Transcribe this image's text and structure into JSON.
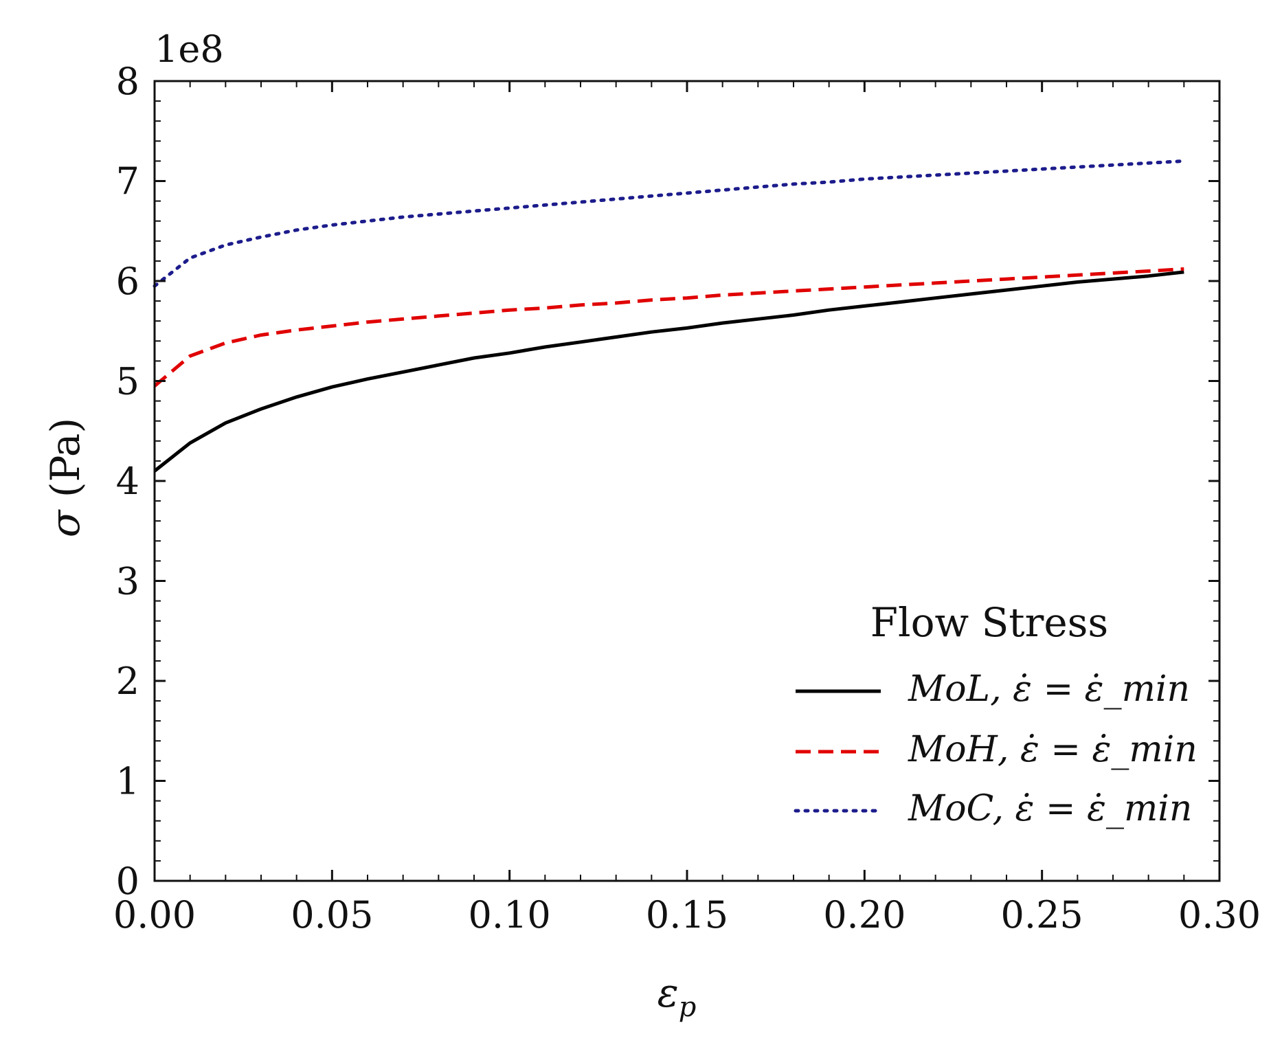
{
  "chart_data": {
    "type": "line",
    "title": "",
    "xlabel": "ε_p",
    "ylabel": "σ (Pa)",
    "y_offset_text": "1e8",
    "xlim": [
      0.0,
      0.3
    ],
    "ylim": [
      0,
      800000000.0
    ],
    "x_ticks": [
      0.0,
      0.05,
      0.1,
      0.15,
      0.2,
      0.25,
      0.3
    ],
    "x_tick_labels": [
      "0.00",
      "0.05",
      "0.10",
      "0.15",
      "0.20",
      "0.25",
      "0.30"
    ],
    "y_ticks": [
      0,
      100000000.0,
      200000000.0,
      300000000.0,
      400000000.0,
      500000000.0,
      600000000.0,
      700000000.0,
      800000000.0
    ],
    "y_tick_labels": [
      "0",
      "1",
      "2",
      "3",
      "4",
      "5",
      "6",
      "7",
      "8"
    ],
    "grid": false,
    "legend": {
      "title": "Flow Stress",
      "placement": "lower-right"
    },
    "x": [
      0.0,
      0.01,
      0.02,
      0.03,
      0.04,
      0.05,
      0.06,
      0.07,
      0.08,
      0.09,
      0.1,
      0.11,
      0.12,
      0.13,
      0.14,
      0.15,
      0.16,
      0.17,
      0.18,
      0.19,
      0.2,
      0.21,
      0.22,
      0.23,
      0.24,
      0.25,
      0.26,
      0.27,
      0.28,
      0.29
    ],
    "series": [
      {
        "name": "MoL, ε̇ = ε̇_min",
        "color": "#000000",
        "style": "solid",
        "values": [
          410000000.0,
          438000000.0,
          458000000.0,
          472000000.0,
          484000000.0,
          494000000.0,
          502000000.0,
          509000000.0,
          516000000.0,
          523000000.0,
          528000000.0,
          534000000.0,
          539000000.0,
          544000000.0,
          549000000.0,
          553000000.0,
          558000000.0,
          562000000.0,
          566000000.0,
          571000000.0,
          575000000.0,
          579000000.0,
          583000000.0,
          587000000.0,
          591000000.0,
          595000000.0,
          599000000.0,
          602000000.0,
          605000000.0,
          609000000.0
        ]
      },
      {
        "name": "MoH, ε̇ = ε̇_min",
        "color": "#e00000",
        "style": "dashed",
        "values": [
          495000000.0,
          525000000.0,
          538000000.0,
          546000000.0,
          551000000.0,
          555000000.0,
          559000000.0,
          562000000.0,
          565000000.0,
          568000000.0,
          571000000.0,
          573000000.0,
          576000000.0,
          578000000.0,
          581000000.0,
          583000000.0,
          586000000.0,
          588000000.0,
          590000000.0,
          592000000.0,
          594000000.0,
          596000000.0,
          598000000.0,
          600000000.0,
          602000000.0,
          604000000.0,
          606000000.0,
          608000000.0,
          610000000.0,
          612000000.0
        ]
      },
      {
        "name": "MoC, ε̇ = ε̇_min",
        "color": "#1c1c8c",
        "style": "dotted",
        "values": [
          595000000.0,
          623000000.0,
          636000000.0,
          644000000.0,
          651000000.0,
          656000000.0,
          660000000.0,
          664000000.0,
          667000000.0,
          670000000.0,
          673000000.0,
          676000000.0,
          679000000.0,
          682000000.0,
          685000000.0,
          688000000.0,
          691000000.0,
          694000000.0,
          697000000.0,
          699000000.0,
          702000000.0,
          704000000.0,
          706000000.0,
          708000000.0,
          710000000.0,
          712000000.0,
          714000000.0,
          716000000.0,
          718000000.0,
          720000000.0
        ]
      }
    ]
  }
}
